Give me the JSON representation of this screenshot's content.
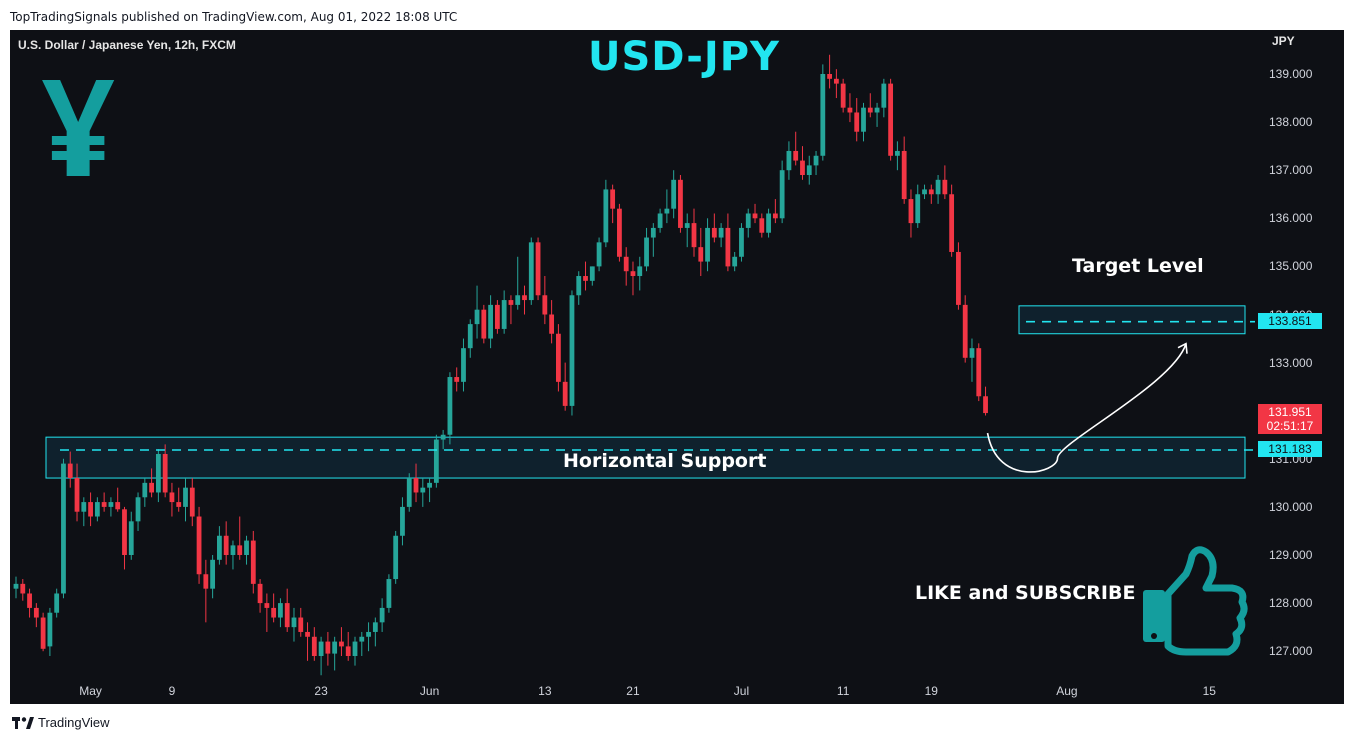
{
  "publisher_line": "TopTradingSignals published on TradingView.com, Aug 01, 2022 18:08 UTC",
  "chart_title": "U.S. Dollar / Japanese Yen, 12h, FXCM",
  "pair_label": "USD-JPY",
  "currency": "JPY",
  "annotations": {
    "support": "Horizontal Support",
    "target": "Target Level",
    "cta": "LIKE and SUBSCRIBE"
  },
  "price_tags": {
    "target": "133.851",
    "last_price": "131.951",
    "countdown": "02:51:17",
    "support": "131.183"
  },
  "footer_brand": "TradingView",
  "colors": {
    "background": "#0e1015",
    "up": "#26a69a",
    "down": "#f23645",
    "accent": "#22e5f0",
    "zone_fill": "#0f2430"
  },
  "icons": [
    "yen-icon",
    "thumbs-up-icon",
    "tradingview-logo-icon"
  ],
  "chart_data": {
    "type": "candlestick",
    "title": "U.S. Dollar / Japanese Yen, 12h, FXCM",
    "y_unit": "JPY",
    "ylim": [
      126.1,
      140.0
    ],
    "y_ticks": [
      "139.000",
      "138.000",
      "137.000",
      "136.000",
      "135.000",
      "134.000",
      "133.000",
      "132.000",
      "131.000",
      "130.000",
      "129.000",
      "128.000",
      "127.000"
    ],
    "x_ticks": [
      {
        "label": "May",
        "index": 11
      },
      {
        "label": "9",
        "index": 23
      },
      {
        "label": "23",
        "index": 45
      },
      {
        "label": "Jun",
        "index": 61
      },
      {
        "label": "13",
        "index": 78
      },
      {
        "label": "21",
        "index": 91
      },
      {
        "label": "Jul",
        "index": 107
      },
      {
        "label": "11",
        "index": 122
      },
      {
        "label": "19",
        "index": 135
      },
      {
        "label": "Aug",
        "index": 155
      },
      {
        "label": "15",
        "index": 176
      }
    ],
    "levels": {
      "support": 131.183,
      "target": 133.851,
      "last": 131.951
    },
    "zones": [
      {
        "name": "horizontal-support",
        "top": 131.45,
        "bottom": 130.6
      },
      {
        "name": "target-level",
        "top": 134.18,
        "bottom": 133.6
      }
    ],
    "candles": [
      [
        128.3,
        128.55,
        128.1,
        128.4
      ],
      [
        128.4,
        128.5,
        128.05,
        128.2
      ],
      [
        128.2,
        128.3,
        127.7,
        127.9
      ],
      [
        127.9,
        128.0,
        127.5,
        127.7
      ],
      [
        127.7,
        127.8,
        127.0,
        127.05
      ],
      [
        127.1,
        127.9,
        126.9,
        127.8
      ],
      [
        127.8,
        128.3,
        127.7,
        128.2
      ],
      [
        128.2,
        131.0,
        128.1,
        130.9
      ],
      [
        130.9,
        131.15,
        130.4,
        130.6
      ],
      [
        130.6,
        130.9,
        129.7,
        129.9
      ],
      [
        129.9,
        130.2,
        129.6,
        130.1
      ],
      [
        130.1,
        130.3,
        129.6,
        129.8
      ],
      [
        129.8,
        130.2,
        129.7,
        130.1
      ],
      [
        130.1,
        130.3,
        129.9,
        130.0
      ],
      [
        130.0,
        130.2,
        129.8,
        130.1
      ],
      [
        130.1,
        130.4,
        129.9,
        129.95
      ],
      [
        129.95,
        130.0,
        128.7,
        129.0
      ],
      [
        129.0,
        129.9,
        128.9,
        129.7
      ],
      [
        129.7,
        130.3,
        129.5,
        130.2
      ],
      [
        130.2,
        130.6,
        130.0,
        130.5
      ],
      [
        130.5,
        130.8,
        130.2,
        130.3
      ],
      [
        130.3,
        131.2,
        130.1,
        131.1
      ],
      [
        131.1,
        131.3,
        130.2,
        130.3
      ],
      [
        130.3,
        130.5,
        129.8,
        130.1
      ],
      [
        130.1,
        130.4,
        129.9,
        130.0
      ],
      [
        130.0,
        130.6,
        129.7,
        130.4
      ],
      [
        130.4,
        130.6,
        129.6,
        129.8
      ],
      [
        129.8,
        130.0,
        128.4,
        128.6
      ],
      [
        128.6,
        128.9,
        127.6,
        128.3
      ],
      [
        128.3,
        129.0,
        128.1,
        128.9
      ],
      [
        128.9,
        129.6,
        128.8,
        129.4
      ],
      [
        129.4,
        129.7,
        128.8,
        129.0
      ],
      [
        129.0,
        129.3,
        128.7,
        129.2
      ],
      [
        129.2,
        129.8,
        128.9,
        129.0
      ],
      [
        129.0,
        129.4,
        128.8,
        129.3
      ],
      [
        129.3,
        129.5,
        128.2,
        128.4
      ],
      [
        128.4,
        128.5,
        127.8,
        128.0
      ],
      [
        128.0,
        128.2,
        127.4,
        127.9
      ],
      [
        127.9,
        128.2,
        127.6,
        127.7
      ],
      [
        127.7,
        128.1,
        127.5,
        128.0
      ],
      [
        128.0,
        128.3,
        127.4,
        127.5
      ],
      [
        127.5,
        127.9,
        127.2,
        127.7
      ],
      [
        127.7,
        127.9,
        127.3,
        127.4
      ],
      [
        127.4,
        127.6,
        126.8,
        127.3
      ],
      [
        127.3,
        127.5,
        126.8,
        126.9
      ],
      [
        126.9,
        127.3,
        126.5,
        127.2
      ],
      [
        127.2,
        127.4,
        126.7,
        126.95
      ],
      [
        126.95,
        127.3,
        126.6,
        127.2
      ],
      [
        127.2,
        127.5,
        126.9,
        127.1
      ],
      [
        127.1,
        127.4,
        126.8,
        126.9
      ],
      [
        126.9,
        127.3,
        126.7,
        127.2
      ],
      [
        127.2,
        127.4,
        126.9,
        127.3
      ],
      [
        127.3,
        127.6,
        127.0,
        127.4
      ],
      [
        127.4,
        127.7,
        127.1,
        127.6
      ],
      [
        127.6,
        128.1,
        127.4,
        127.9
      ],
      [
        127.9,
        128.6,
        127.8,
        128.5
      ],
      [
        128.5,
        129.5,
        128.4,
        129.4
      ],
      [
        129.4,
        130.2,
        129.2,
        130.0
      ],
      [
        130.0,
        130.7,
        129.9,
        130.6
      ],
      [
        130.6,
        130.9,
        130.1,
        130.3
      ],
      [
        130.3,
        130.6,
        130.0,
        130.4
      ],
      [
        130.4,
        130.6,
        130.1,
        130.5
      ],
      [
        130.5,
        131.5,
        130.4,
        131.4
      ],
      [
        131.4,
        131.6,
        131.2,
        131.5
      ],
      [
        131.5,
        132.8,
        131.3,
        132.7
      ],
      [
        132.7,
        132.9,
        132.4,
        132.6
      ],
      [
        132.6,
        133.5,
        132.4,
        133.3
      ],
      [
        133.3,
        133.9,
        133.1,
        133.8
      ],
      [
        133.8,
        134.6,
        133.5,
        134.1
      ],
      [
        134.1,
        134.2,
        133.4,
        133.5
      ],
      [
        133.5,
        134.4,
        133.3,
        134.2
      ],
      [
        134.2,
        134.3,
        133.6,
        133.7
      ],
      [
        133.7,
        134.5,
        133.6,
        134.3
      ],
      [
        134.3,
        134.4,
        133.8,
        134.2
      ],
      [
        134.2,
        135.2,
        134.1,
        134.4
      ],
      [
        134.4,
        134.6,
        134.0,
        134.3
      ],
      [
        134.3,
        135.6,
        134.2,
        135.5
      ],
      [
        135.5,
        135.6,
        134.3,
        134.4
      ],
      [
        134.4,
        134.8,
        133.8,
        134.0
      ],
      [
        134.0,
        134.3,
        133.4,
        133.6
      ],
      [
        133.6,
        133.8,
        132.4,
        132.6
      ],
      [
        132.6,
        133.0,
        132.0,
        132.1
      ],
      [
        132.1,
        134.5,
        131.9,
        134.4
      ],
      [
        134.4,
        134.9,
        134.2,
        134.8
      ],
      [
        134.8,
        135.1,
        134.5,
        134.7
      ],
      [
        134.7,
        135.0,
        134.6,
        135.0
      ],
      [
        135.0,
        135.6,
        134.9,
        135.5
      ],
      [
        135.5,
        136.8,
        135.4,
        136.6
      ],
      [
        136.6,
        136.7,
        135.9,
        136.2
      ],
      [
        136.2,
        136.3,
        135.1,
        135.2
      ],
      [
        135.2,
        135.4,
        134.6,
        134.9
      ],
      [
        134.9,
        135.1,
        134.4,
        134.8
      ],
      [
        134.8,
        135.2,
        134.5,
        135.0
      ],
      [
        135.0,
        135.8,
        134.9,
        135.6
      ],
      [
        135.6,
        135.9,
        135.2,
        135.8
      ],
      [
        135.8,
        136.2,
        135.7,
        136.1
      ],
      [
        136.1,
        136.6,
        135.9,
        136.2
      ],
      [
        136.2,
        137.0,
        136.0,
        136.8
      ],
      [
        136.8,
        136.9,
        135.7,
        135.8
      ],
      [
        135.8,
        136.1,
        135.4,
        135.9
      ],
      [
        135.9,
        136.2,
        135.2,
        135.4
      ],
      [
        135.4,
        135.8,
        134.8,
        135.1
      ],
      [
        135.1,
        136.0,
        134.9,
        135.8
      ],
      [
        135.8,
        136.1,
        135.5,
        135.6
      ],
      [
        135.6,
        135.9,
        135.4,
        135.8
      ],
      [
        135.8,
        136.1,
        134.9,
        135.0
      ],
      [
        135.0,
        135.3,
        134.9,
        135.2
      ],
      [
        135.2,
        135.9,
        135.1,
        135.8
      ],
      [
        135.8,
        136.2,
        135.6,
        136.1
      ],
      [
        136.1,
        136.3,
        135.9,
        136.0
      ],
      [
        136.0,
        136.1,
        135.6,
        135.7
      ],
      [
        135.7,
        136.2,
        135.6,
        136.1
      ],
      [
        136.1,
        136.4,
        135.9,
        136.0
      ],
      [
        136.0,
        137.2,
        135.9,
        137.0
      ],
      [
        137.0,
        137.6,
        136.8,
        137.4
      ],
      [
        137.4,
        137.8,
        137.1,
        137.2
      ],
      [
        137.2,
        137.5,
        136.8,
        136.9
      ],
      [
        136.9,
        137.3,
        136.7,
        137.1
      ],
      [
        137.1,
        137.4,
        136.9,
        137.3
      ],
      [
        137.3,
        139.2,
        137.2,
        139.0
      ],
      [
        139.0,
        139.4,
        138.7,
        138.9
      ],
      [
        138.9,
        139.1,
        138.5,
        138.8
      ],
      [
        138.8,
        138.9,
        138.2,
        138.3
      ],
      [
        138.3,
        138.6,
        138.0,
        138.2
      ],
      [
        138.2,
        138.5,
        137.6,
        137.8
      ],
      [
        137.8,
        138.4,
        137.6,
        138.3
      ],
      [
        138.3,
        138.6,
        138.1,
        138.2
      ],
      [
        138.2,
        138.4,
        137.9,
        138.3
      ],
      [
        138.3,
        138.9,
        138.1,
        138.8
      ],
      [
        138.8,
        138.9,
        137.2,
        137.3
      ],
      [
        137.3,
        137.6,
        137.0,
        137.4
      ],
      [
        137.4,
        137.7,
        136.3,
        136.4
      ],
      [
        136.4,
        136.6,
        135.6,
        135.9
      ],
      [
        135.9,
        136.7,
        135.8,
        136.5
      ],
      [
        136.5,
        136.7,
        136.4,
        136.6
      ],
      [
        136.6,
        136.7,
        136.3,
        136.5
      ],
      [
        136.5,
        136.9,
        136.3,
        136.8
      ],
      [
        136.8,
        137.1,
        136.4,
        136.5
      ],
      [
        136.5,
        136.7,
        135.2,
        135.3
      ],
      [
        135.3,
        135.5,
        134.1,
        134.2
      ],
      [
        134.2,
        134.4,
        133.0,
        133.1
      ],
      [
        133.1,
        133.5,
        132.6,
        133.3
      ],
      [
        133.3,
        133.4,
        132.2,
        132.3
      ],
      [
        132.3,
        132.5,
        131.9,
        131.951
      ]
    ]
  }
}
